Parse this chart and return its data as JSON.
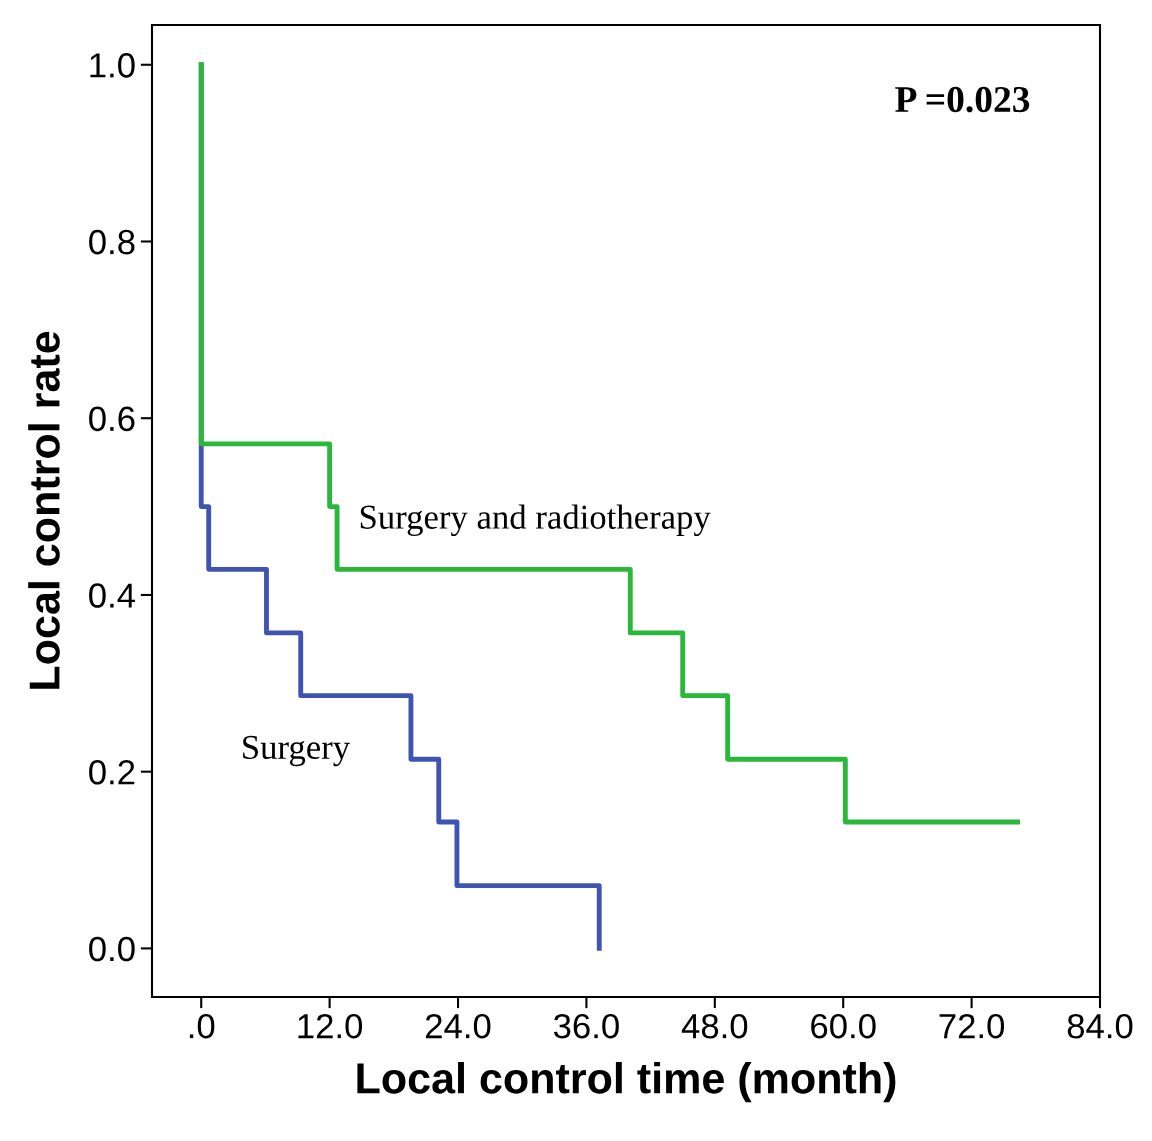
{
  "chart_data": {
    "type": "step",
    "xlabel": "Local control time (month)",
    "ylabel": "Local control rate",
    "annotations": [
      "P =0.023"
    ],
    "series": [
      {
        "name": "Surgery",
        "color": "#3f54b0",
        "x": [
          0,
          0,
          0.7,
          6.1,
          9.3,
          19.6,
          22.2,
          23.9,
          37.2
        ],
        "values": [
          1.0,
          0.5,
          0.429,
          0.357,
          0.286,
          0.214,
          0.143,
          0.071,
          0.0
        ]
      },
      {
        "name": "Surgery and radiotherapy",
        "color": "#2bb83a",
        "x": [
          0,
          0,
          12.0,
          12.7,
          40.1,
          45.0,
          49.2,
          60.2,
          76.3
        ],
        "values": [
          1.0,
          0.571,
          0.5,
          0.429,
          0.357,
          0.286,
          0.214,
          0.143,
          0.143
        ]
      }
    ],
    "xlim": [
      -4.6,
      84.0
    ],
    "ylim": [
      -0.055,
      1.045
    ],
    "xticks": [
      {
        "value": 0,
        "label": ".0"
      },
      {
        "value": 12,
        "label": "12.0"
      },
      {
        "value": 24,
        "label": "24.0"
      },
      {
        "value": 36,
        "label": "36.0"
      },
      {
        "value": 48,
        "label": "48.0"
      },
      {
        "value": 60,
        "label": "60.0"
      },
      {
        "value": 72,
        "label": "72.0"
      },
      {
        "value": 84,
        "label": "84.0"
      }
    ],
    "yticks": [
      {
        "value": 0,
        "label": "0.0"
      },
      {
        "value": 0.2,
        "label": "0.2"
      },
      {
        "value": 0.4,
        "label": "0.4"
      },
      {
        "value": 0.6,
        "label": "0.6"
      },
      {
        "value": 0.8,
        "label": "0.8"
      },
      {
        "value": 1.0,
        "label": "1.0"
      }
    ],
    "grid": false,
    "legend": false,
    "line_style": "solid",
    "marker": "none"
  }
}
